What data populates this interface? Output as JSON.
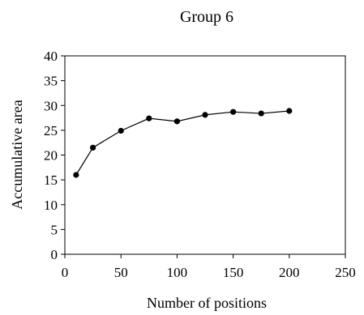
{
  "chart_data": {
    "type": "line",
    "title": "Group 6",
    "xlabel": "Number of positions",
    "ylabel": "Accumulative area",
    "xlim": [
      0,
      250
    ],
    "ylim": [
      0,
      40
    ],
    "xticks": [
      0,
      50,
      100,
      150,
      200,
      250
    ],
    "yticks": [
      0,
      5,
      10,
      15,
      20,
      25,
      30,
      35,
      40
    ],
    "grid": false,
    "legend": "none",
    "series": [
      {
        "x": [
          10,
          25,
          50,
          75,
          100,
          125,
          150,
          175,
          200
        ],
        "y": [
          16,
          21.5,
          24.9,
          27.4,
          26.8,
          28.1,
          28.7,
          28.4,
          28.9
        ]
      }
    ]
  }
}
